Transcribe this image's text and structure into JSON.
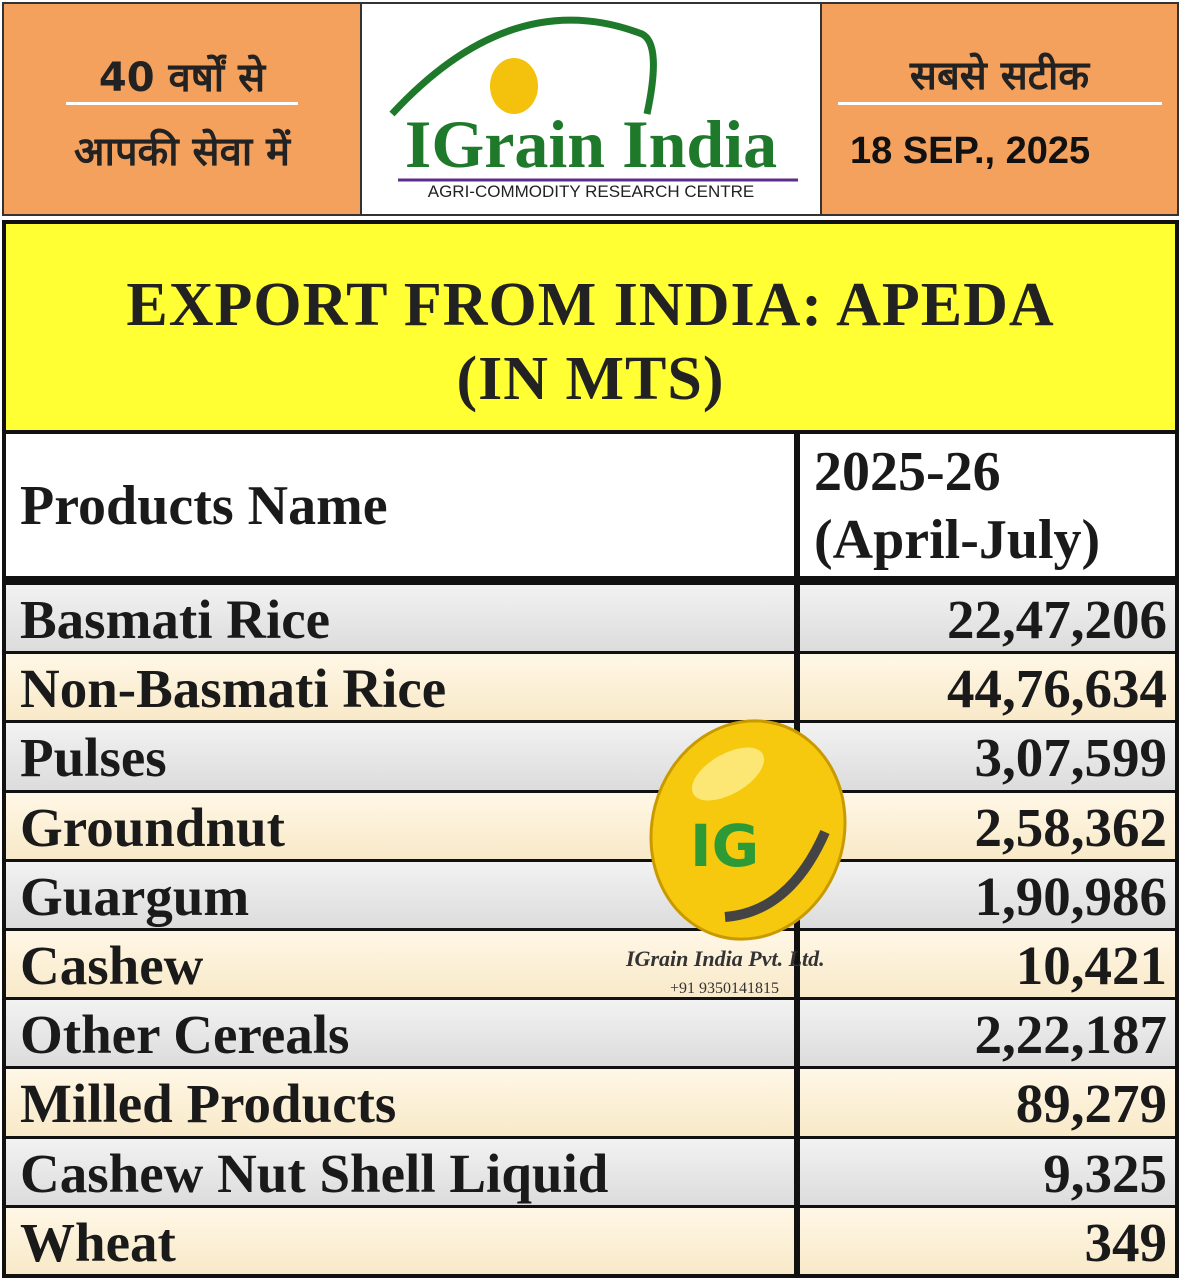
{
  "header": {
    "left_line1": "40 वर्षों से",
    "left_line2": "आपकी सेवा में",
    "logo_title": "IGrain India",
    "logo_subtitle": "AGRI-COMMODITY RESEARCH CENTRE",
    "right_line1": "सबसे सटीक",
    "date": "18 SEP., 2025"
  },
  "table": {
    "title_line1": "EXPORT FROM INDIA: APEDA",
    "title_line2": "(IN MTS)",
    "columns": [
      "Products Name",
      "2025-26",
      "(April-July)"
    ],
    "rows": [
      [
        "Basmati Rice",
        "22,47,206"
      ],
      [
        "Non-Basmati Rice",
        "44,76,634"
      ],
      [
        "Pulses",
        "3,07,599"
      ],
      [
        "Groundnut",
        "2,58,362"
      ],
      [
        "Guargum",
        "1,90,986"
      ],
      [
        "Cashew",
        "10,421"
      ],
      [
        "Other Cereals",
        "2,22,187"
      ],
      [
        "Milled Products",
        "89,279"
      ],
      [
        "Cashew Nut Shell Liquid",
        "9,325"
      ],
      [
        "Wheat",
        "349"
      ]
    ]
  },
  "watermark": {
    "logo": "IG",
    "company": "IGrain India Pvt. Ltd.",
    "phone": "+91 9350141815"
  }
}
